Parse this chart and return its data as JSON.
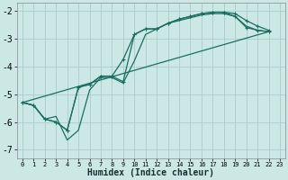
{
  "xlabel": "Humidex (Indice chaleur)",
  "xlim": [
    -0.5,
    23.5
  ],
  "ylim": [
    -7.3,
    -1.7
  ],
  "yticks": [
    -7,
    -6,
    -5,
    -4,
    -3,
    -2
  ],
  "xticks": [
    0,
    1,
    2,
    3,
    4,
    5,
    6,
    7,
    8,
    9,
    10,
    11,
    12,
    13,
    14,
    15,
    16,
    17,
    18,
    19,
    20,
    21,
    22,
    23
  ],
  "background_color": "#cce8e4",
  "grid_color": "#aacccc",
  "line_color": "#1a6e60",
  "lines": [
    {
      "x": [
        0,
        1,
        2,
        3,
        4,
        5,
        6,
        7,
        8,
        9,
        10,
        11,
        12,
        13,
        14,
        15,
        16,
        17,
        18,
        19,
        20,
        21,
        22
      ],
      "y": [
        -5.3,
        -5.4,
        -5.9,
        -6.0,
        -6.3,
        -4.75,
        -4.65,
        -4.35,
        -4.35,
        -4.55,
        -2.85,
        -2.65,
        -2.65,
        -2.45,
        -2.3,
        -2.2,
        -2.1,
        -2.05,
        -2.05,
        -2.1,
        -2.35,
        -2.55,
        -2.7
      ],
      "marker": "+"
    },
    {
      "x": [
        0,
        1,
        2,
        3,
        4,
        5,
        6,
        7,
        8,
        9,
        10,
        11,
        12,
        13,
        14,
        15,
        16,
        17,
        18,
        19,
        20,
        21,
        22
      ],
      "y": [
        -5.3,
        -5.4,
        -5.9,
        -6.0,
        -6.3,
        -4.75,
        -4.65,
        -4.35,
        -4.35,
        -3.75,
        -2.85,
        -2.65,
        -2.65,
        -2.45,
        -2.3,
        -2.2,
        -2.1,
        -2.05,
        -2.05,
        -2.2,
        -2.6,
        -2.7,
        -2.75
      ],
      "marker": "+"
    },
    {
      "x": [
        0,
        1,
        2,
        3,
        4,
        5,
        6,
        7,
        8,
        9,
        10,
        11,
        12,
        13,
        14,
        15,
        16,
        17,
        18,
        19,
        20,
        21,
        22
      ],
      "y": [
        -5.3,
        -5.4,
        -5.9,
        -5.8,
        -6.65,
        -6.3,
        -4.85,
        -4.4,
        -4.4,
        -4.6,
        -3.8,
        -2.85,
        -2.65,
        -2.45,
        -2.35,
        -2.25,
        -2.15,
        -2.1,
        -2.1,
        -2.2,
        -2.55,
        -2.7,
        -2.75
      ],
      "marker": null
    },
    {
      "x": [
        0,
        22
      ],
      "y": [
        -5.3,
        -2.75
      ],
      "marker": null
    }
  ]
}
